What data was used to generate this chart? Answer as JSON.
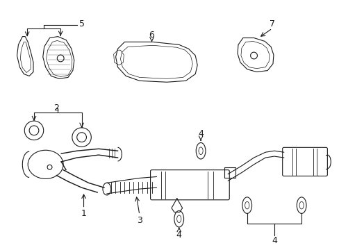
{
  "background": "#ffffff",
  "line_color": "#1a1a1a",
  "line_width": 0.8,
  "fig_width": 4.89,
  "fig_height": 3.6,
  "dpi": 100
}
